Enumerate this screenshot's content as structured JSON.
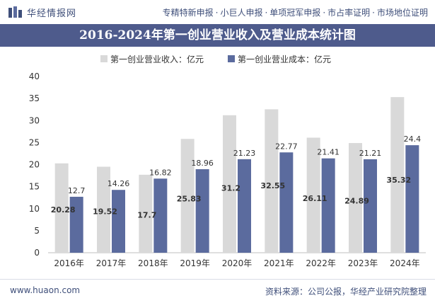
{
  "header": {
    "logo_text": "华经情报网",
    "links": [
      "专精特新申报",
      "小巨人申报",
      "单项冠军申报",
      "市占率证明",
      "市场地位证明"
    ],
    "link_separator": "·"
  },
  "footer": {
    "url": "www.huaon.com",
    "source": "资料来源：公司公报，华经产业研究院整理"
  },
  "colors": {
    "title_bg": "#4e5b8c",
    "revenue": "#d9d9d9",
    "cost": "#5b6b9e",
    "axis_text": "#333333"
  },
  "chart_data": {
    "type": "bar",
    "title": "2016-2024年第一创业营业收入及营业成本统计图",
    "categories": [
      "2016年",
      "2017年",
      "2018年",
      "2019年",
      "2020年",
      "2021年",
      "2022年",
      "2023年",
      "2024年"
    ],
    "series": [
      {
        "name": "第一创业营业收入：亿元",
        "values": [
          20.28,
          19.52,
          17.7,
          25.83,
          31.2,
          32.55,
          26.11,
          24.89,
          35.32
        ]
      },
      {
        "name": "第一创业营业成本：亿元",
        "values": [
          12.7,
          14.26,
          16.82,
          18.96,
          21.23,
          22.77,
          21.41,
          21.21,
          24.4
        ]
      }
    ],
    "labels": [
      [
        "20.28",
        "19.52",
        "17.7",
        "25.83",
        "31.2",
        "32.55",
        "26.11",
        "24.89",
        "35.32"
      ],
      [
        "12.7",
        "14.26",
        "16.82",
        "18.96",
        "21.23",
        "22.77",
        "21.41",
        "21.21",
        "24.4"
      ]
    ],
    "ylim": [
      0,
      40
    ],
    "yticks": [
      0,
      5,
      10,
      15,
      20,
      25,
      30,
      35,
      40
    ],
    "ytick_labels": [
      "0",
      "5",
      "10",
      "15",
      "20",
      "25",
      "30",
      "35",
      "40"
    ],
    "legend_position": "top-center"
  }
}
